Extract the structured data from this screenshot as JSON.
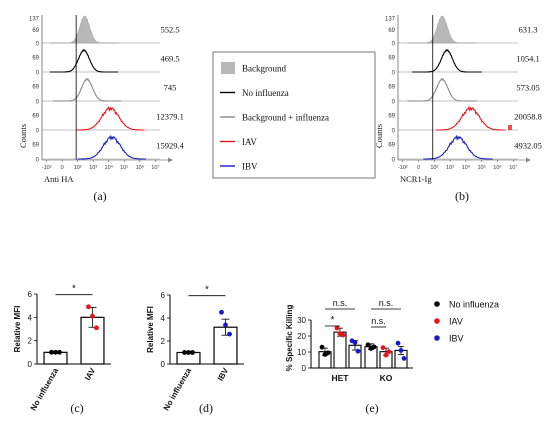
{
  "chart_data": [
    {
      "panel": "(a)",
      "type": "line",
      "subtype": "flow-cytometry-histogram-overlay",
      "xlabel": "Anti HA",
      "ylabel": "Counts",
      "x_ticks": [
        "-10²",
        "0",
        "10²",
        "10³",
        "10⁴",
        "10⁵",
        "10⁶",
        "10⁷"
      ],
      "y_ticks_top": [
        "137",
        "69",
        "0"
      ],
      "y_ticks_other": [
        "69",
        "0"
      ],
      "rows": [
        {
          "series": "Background",
          "mfi": "552.5",
          "peak_log": 2.45
        },
        {
          "series": "No influenza",
          "mfi": "469.5",
          "peak_log": 2.4
        },
        {
          "series": "Background + influenza",
          "mfi": "745",
          "peak_log": 2.6
        },
        {
          "series": "IAV",
          "mfi": "12379.1",
          "peak_log": 4.1
        },
        {
          "series": "IBV",
          "mfi": "15929.4",
          "peak_log": 4.2
        }
      ]
    },
    {
      "panel": "(b)",
      "type": "line",
      "subtype": "flow-cytometry-histogram-overlay",
      "xlabel": "NCR1-Ig",
      "ylabel": "Counts",
      "x_ticks": [
        "-10²",
        "0",
        "10²",
        "10³",
        "10⁴",
        "10⁵",
        "10⁶",
        "10⁷"
      ],
      "y_ticks_top": [
        "137",
        "69",
        "0"
      ],
      "y_ticks_other": [
        "69",
        "0"
      ],
      "rows": [
        {
          "series": "Background",
          "mfi": "631.3",
          "peak_log": 2.5
        },
        {
          "series": "No influenza",
          "mfi": "1054.1",
          "peak_log": 2.8
        },
        {
          "series": "Background + influenza",
          "mfi": "573.05",
          "peak_log": 2.5
        },
        {
          "series": "IAV",
          "mfi": "20058.8",
          "peak_log": 4.3
        },
        {
          "series": "IBV",
          "mfi": "4932.05",
          "peak_log": 3.5
        }
      ]
    },
    {
      "panel": "(c)",
      "type": "bar",
      "ylabel": "Relative MFI",
      "ylim": [
        0,
        6
      ],
      "y_ticks": [
        "0",
        "2",
        "4",
        "6"
      ],
      "categories": [
        "No influenza",
        "IAV"
      ],
      "values": [
        1.0,
        4.0
      ],
      "errors": [
        0.05,
        0.85
      ],
      "points": [
        [
          1.0,
          1.0,
          1.0
        ],
        [
          4.9,
          4.1,
          3.1
        ]
      ],
      "significance": "*"
    },
    {
      "panel": "(d)",
      "type": "bar",
      "ylabel": "Relative MFI",
      "ylim": [
        0,
        6
      ],
      "y_ticks": [
        "0",
        "2",
        "4",
        "6"
      ],
      "categories": [
        "No influenza",
        "IBV"
      ],
      "values": [
        1.0,
        3.2
      ],
      "errors": [
        0.05,
        0.7
      ],
      "points": [
        [
          1.0,
          1.0,
          1.0
        ],
        [
          4.5,
          3.4,
          2.6
        ]
      ],
      "significance": "*"
    },
    {
      "panel": "(e)",
      "type": "bar",
      "ylabel": "% Specific Killing",
      "ylim": [
        0,
        30
      ],
      "y_ticks": [
        "0",
        "10",
        "20",
        "30"
      ],
      "categories": [
        "HET",
        "KO"
      ],
      "series": [
        {
          "name": "No influenza",
          "values": [
            10.2,
            13.3
          ],
          "errors": [
            2.2,
            1.8
          ],
          "points": [
            [
              13,
              8.5,
              9.5
            ],
            [
              14.5,
              12.2,
              13.2
            ]
          ]
        },
        {
          "name": "IAV",
          "values": [
            22.4,
            10.2
          ],
          "errors": [
            2.5,
            2.2
          ],
          "points": [
            [
              25,
              21.5,
              20.6
            ],
            [
              12.7,
              8.1,
              10.2
            ]
          ]
        },
        {
          "name": "IBV",
          "values": [
            14.2,
            11.0
          ],
          "errors": [
            3.0,
            2.5
          ],
          "points": [
            [
              17,
              16,
              10.5
            ],
            [
              15.5,
              11,
              6
            ]
          ]
        }
      ],
      "significance": [
        {
          "label": "*",
          "from": [
            0,
            0
          ],
          "to": [
            0,
            1
          ]
        },
        {
          "label": "n.s.",
          "from": [
            0,
            0
          ],
          "to": [
            0,
            2
          ]
        },
        {
          "label": "n.s.",
          "from": [
            1,
            0
          ],
          "to": [
            1,
            1
          ]
        },
        {
          "label": "n.s.",
          "from": [
            1,
            0
          ],
          "to": [
            1,
            2
          ]
        }
      ]
    }
  ],
  "legend_ab": [
    {
      "label": "Background",
      "color": "#b8b8b8",
      "style": "fill"
    },
    {
      "label": "No influenza",
      "color": "#000000",
      "style": "line"
    },
    {
      "label": "Background + influenza",
      "color": "#8a8a8a",
      "style": "line"
    },
    {
      "label": "IAV",
      "color": "#e8141c",
      "style": "line"
    },
    {
      "label": "IBV",
      "color": "#1a1acc",
      "style": "line"
    }
  ],
  "legend_e": [
    {
      "label": "No influenza",
      "color": "#000000"
    },
    {
      "label": "IAV",
      "color": "#e8141c"
    },
    {
      "label": "IBV",
      "color": "#1a1acc"
    }
  ],
  "colors": {
    "background": "#b8b8b8",
    "no_influenza": "#000000",
    "background_plus_influenza": "#8a8a8a",
    "iav": "#e8141c",
    "ibv": "#1a1acc"
  }
}
